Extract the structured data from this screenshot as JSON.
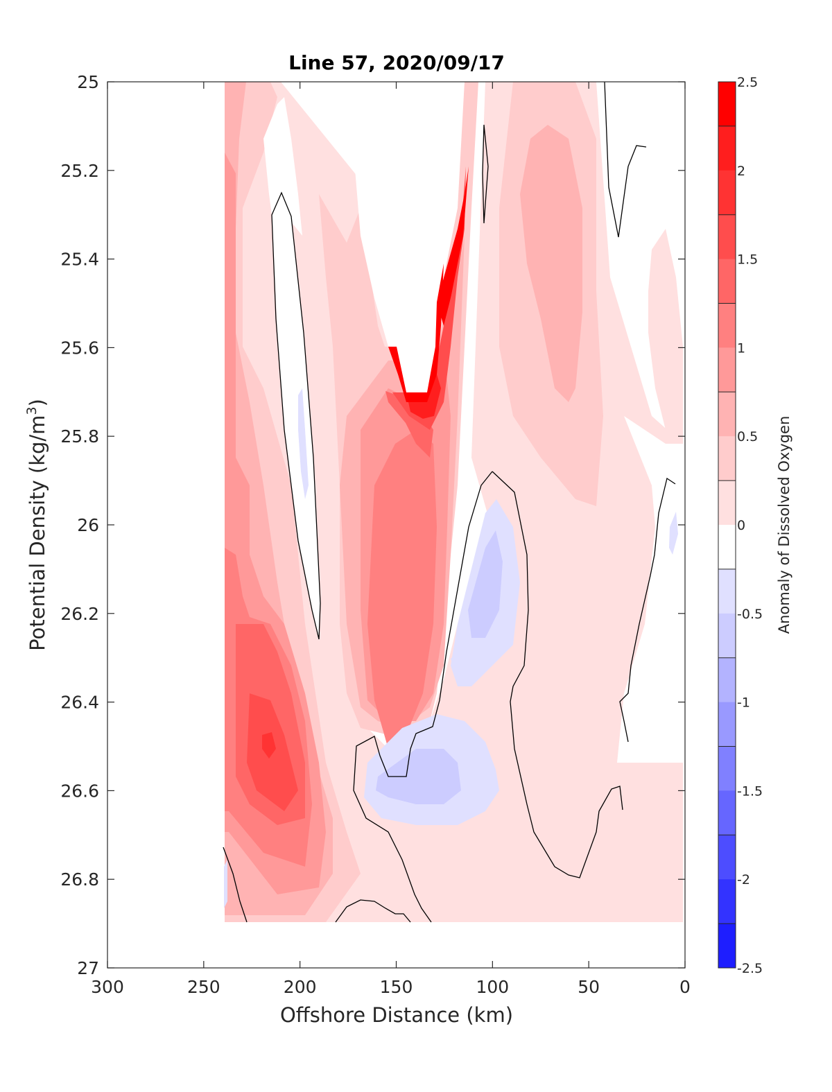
{
  "chart_data": {
    "type": "contour",
    "title": "Line 57, 2020/09/17",
    "xlabel": "Offshore Distance (km)",
    "ylabel_main": "Potential Density (kg/m",
    "ylabel_sup": "3",
    "ylabel_close": ")",
    "colorbar_label": "Anomaly of Dissolved Oxygen",
    "xlim": [
      300,
      0
    ],
    "x_reversed": true,
    "xticks": [
      300,
      250,
      200,
      150,
      100,
      50,
      0
    ],
    "xtick_labels": [
      "300",
      "250",
      "200",
      "150",
      "100",
      "50",
      "0"
    ],
    "ylim": [
      25,
      27
    ],
    "y_reversed": true,
    "yticks": [
      25,
      25.2,
      25.4,
      25.6,
      25.8,
      26,
      26.2,
      26.4,
      26.6,
      26.8,
      27
    ],
    "ytick_labels": [
      "25",
      "25.2",
      "25.4",
      "25.6",
      "25.8",
      "26",
      "26.2",
      "26.4",
      "26.6",
      "26.8",
      "27"
    ],
    "colorbar": {
      "range": [
        -2.5,
        2.5
      ],
      "ticks": [
        2.5,
        2,
        1.5,
        1,
        0.5,
        0,
        -0.5,
        -1,
        -1.5,
        -2,
        -2.5
      ],
      "tick_labels": [
        "2.5",
        "2",
        "1.5",
        "1",
        "0.5",
        "0",
        "-0.5",
        "-1",
        "-1.5",
        "-2",
        "-2.5"
      ],
      "levels": [
        2.25,
        1.75,
        1.25,
        0.75,
        0.25,
        -0.25,
        -0.75,
        -1.25,
        -1.75,
        -2.25
      ],
      "bands": [
        "#ff0000",
        "#ff1e1e",
        "#ff3333",
        "#ff4d4d",
        "#ff6666",
        "#ff8080",
        "#ff9999",
        "#ffb3b3",
        "#ffcccc",
        "#ffe0e0",
        "#ffffff",
        "#e0e0ff",
        "#ccccff",
        "#b3b3ff",
        "#9999ff",
        "#8080ff",
        "#6666ff",
        "#4d4dff",
        "#3333ff",
        "#1e1eff"
      ]
    },
    "grid": false,
    "zero_contour_color": "#000000"
  }
}
